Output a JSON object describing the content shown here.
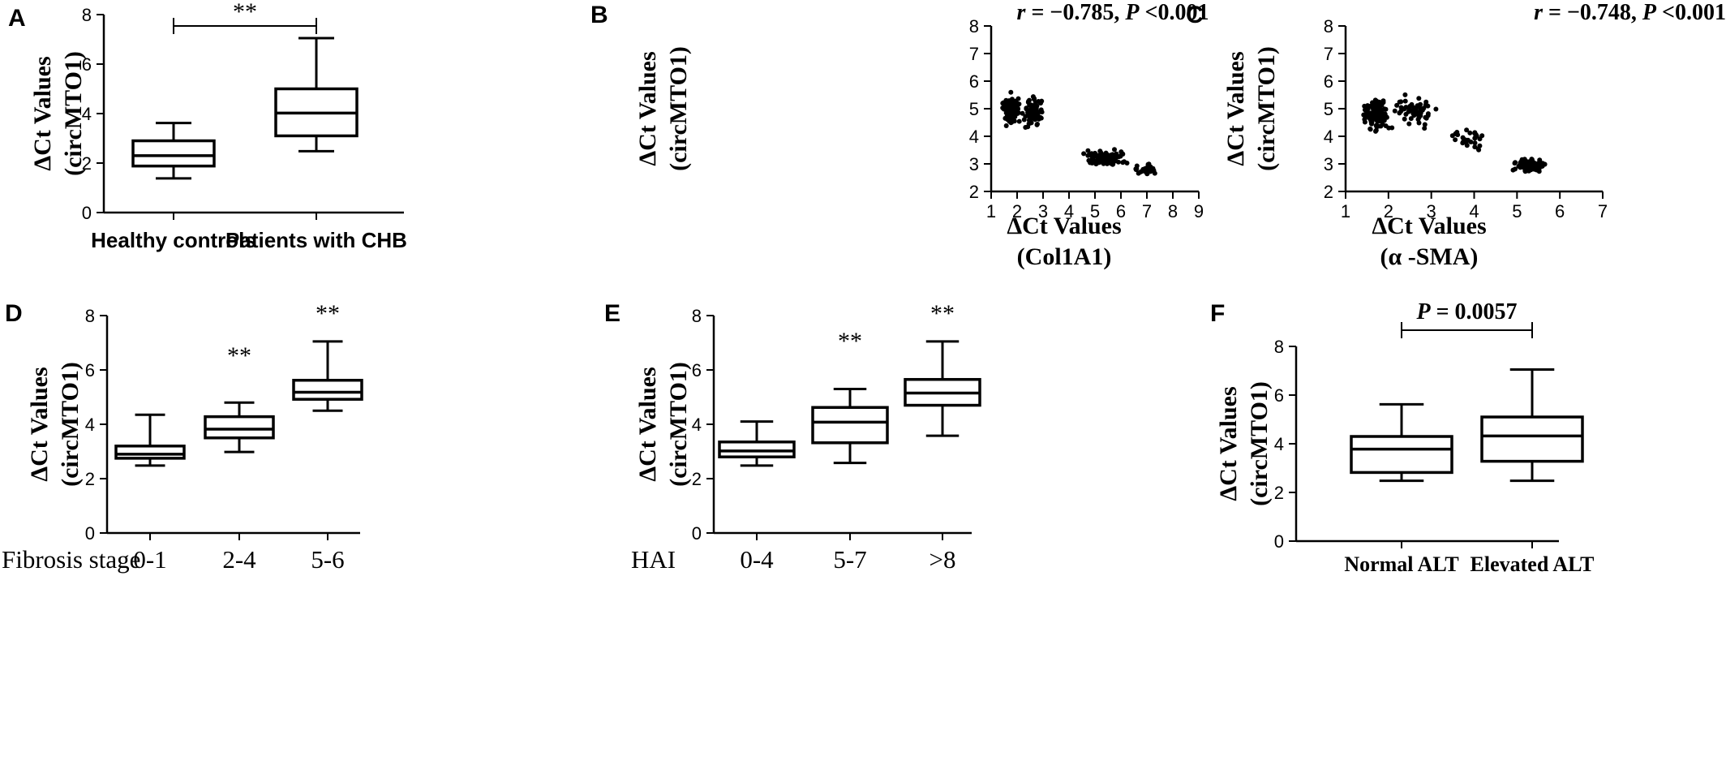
{
  "chart_data": [
    {
      "id": "A",
      "type": "box",
      "panel_label": "A",
      "ylabel": [
        "ΔCt Values",
        "(circMTO1)"
      ],
      "ylim": [
        0,
        8
      ],
      "yticks": [
        0,
        2,
        4,
        6,
        8
      ],
      "categories": [
        "Healthy controls",
        "Patients with CHB"
      ],
      "boxes": [
        {
          "min": 1.38,
          "q1": 1.88,
          "median": 2.3,
          "q3": 2.9,
          "max": 3.62
        },
        {
          "min": 2.48,
          "q1": 3.1,
          "median": 4.02,
          "q3": 5.0,
          "max": 7.05
        }
      ],
      "annotations": [
        {
          "text": "**",
          "between": [
            0,
            1
          ]
        }
      ]
    },
    {
      "id": "B",
      "type": "scatter",
      "panel_label": "B",
      "stat_text": "r = −0.785, P <0.001",
      "ylabel": [
        "ΔCt Values",
        "(circMTO1)"
      ],
      "xlabel": [
        "ΔCt Values",
        "(Col1A1)"
      ],
      "xlim": [
        1,
        9
      ],
      "ylim": [
        2,
        8
      ],
      "xticks": [
        1,
        2,
        3,
        4,
        5,
        6,
        7,
        8,
        9
      ],
      "yticks": [
        2,
        3,
        4,
        5,
        6,
        7,
        8
      ],
      "n_points": 300,
      "groups": [
        {
          "center": [
            1.75,
            4.95
          ],
          "spread": [
            0.5,
            0.75
          ],
          "n": 110
        },
        {
          "center": [
            2.6,
            4.9
          ],
          "spread": [
            0.55,
            0.8
          ],
          "n": 55
        },
        {
          "center": [
            5.3,
            3.25
          ],
          "spread": [
            1.2,
            0.4
          ],
          "n": 100
        },
        {
          "center": [
            7.0,
            2.8
          ],
          "spread": [
            0.55,
            0.25
          ],
          "n": 35
        }
      ]
    },
    {
      "id": "C",
      "type": "scatter",
      "panel_label": "C",
      "stat_text": "r = −0.748, P <0.001",
      "ylabel": [
        "ΔCt Values",
        "(circMTO1)"
      ],
      "xlabel": [
        "ΔCt Values",
        "(α -SMA)"
      ],
      "xlim": [
        1,
        7
      ],
      "ylim": [
        2,
        8
      ],
      "xticks": [
        1,
        2,
        3,
        4,
        5,
        6,
        7
      ],
      "yticks": [
        2,
        3,
        4,
        5,
        6,
        7,
        8
      ],
      "n_points": 300,
      "groups": [
        {
          "center": [
            1.7,
            4.8
          ],
          "spread": [
            0.45,
            0.8
          ],
          "n": 110
        },
        {
          "center": [
            2.6,
            4.9
          ],
          "spread": [
            0.6,
            0.75
          ],
          "n": 55
        },
        {
          "center": [
            3.9,
            3.9
          ],
          "spread": [
            0.6,
            0.6
          ],
          "n": 30
        },
        {
          "center": [
            5.3,
            2.95
          ],
          "spread": [
            0.5,
            0.35
          ],
          "n": 105
        }
      ]
    },
    {
      "id": "D",
      "type": "box",
      "panel_label": "D",
      "ylabel": [
        "ΔCt Values",
        "(circMTO1)"
      ],
      "axis_title": "Fibrosis stage",
      "ylim": [
        0,
        8
      ],
      "yticks": [
        0,
        2,
        4,
        6,
        8
      ],
      "categories": [
        "0-1",
        "2-4",
        "5-6"
      ],
      "boxes": [
        {
          "min": 2.48,
          "q1": 2.75,
          "median": 2.9,
          "q3": 3.2,
          "max": 4.35
        },
        {
          "min": 2.98,
          "q1": 3.5,
          "median": 3.82,
          "q3": 4.28,
          "max": 4.8
        },
        {
          "min": 4.5,
          "q1": 4.92,
          "median": 5.18,
          "q3": 5.62,
          "max": 7.05
        }
      ],
      "annotations": [
        {
          "text": "**",
          "category": 1
        },
        {
          "text": "**",
          "category": 2
        }
      ]
    },
    {
      "id": "E",
      "type": "box",
      "panel_label": "E",
      "ylabel": [
        "ΔCt Values",
        "(circMTO1)"
      ],
      "axis_title": "HAI",
      "ylim": [
        0,
        8
      ],
      "yticks": [
        0,
        2,
        4,
        6,
        8
      ],
      "categories": [
        "0-4",
        "5-7",
        ">8"
      ],
      "boxes": [
        {
          "min": 2.48,
          "q1": 2.8,
          "median": 3.02,
          "q3": 3.35,
          "max": 4.1
        },
        {
          "min": 2.58,
          "q1": 3.32,
          "median": 4.08,
          "q3": 4.62,
          "max": 5.3
        },
        {
          "min": 3.58,
          "q1": 4.7,
          "median": 5.15,
          "q3": 5.65,
          "max": 7.05
        }
      ],
      "annotations": [
        {
          "text": "**",
          "category": 1
        },
        {
          "text": "**",
          "category": 2
        }
      ]
    },
    {
      "id": "F",
      "type": "box",
      "panel_label": "F",
      "ylabel": [
        "ΔCt Values",
        "(circMTO1)"
      ],
      "ylim": [
        0,
        8
      ],
      "yticks": [
        0,
        2,
        4,
        6,
        8
      ],
      "categories": [
        "Normal ALT",
        "Elevated ALT"
      ],
      "boxes": [
        {
          "min": 2.48,
          "q1": 2.82,
          "median": 3.78,
          "q3": 4.3,
          "max": 5.62
        },
        {
          "min": 2.48,
          "q1": 3.28,
          "median": 4.32,
          "q3": 5.1,
          "max": 7.05
        }
      ],
      "annotations": [
        {
          "text": "P = 0.0057",
          "between": [
            0,
            1
          ]
        }
      ]
    }
  ]
}
